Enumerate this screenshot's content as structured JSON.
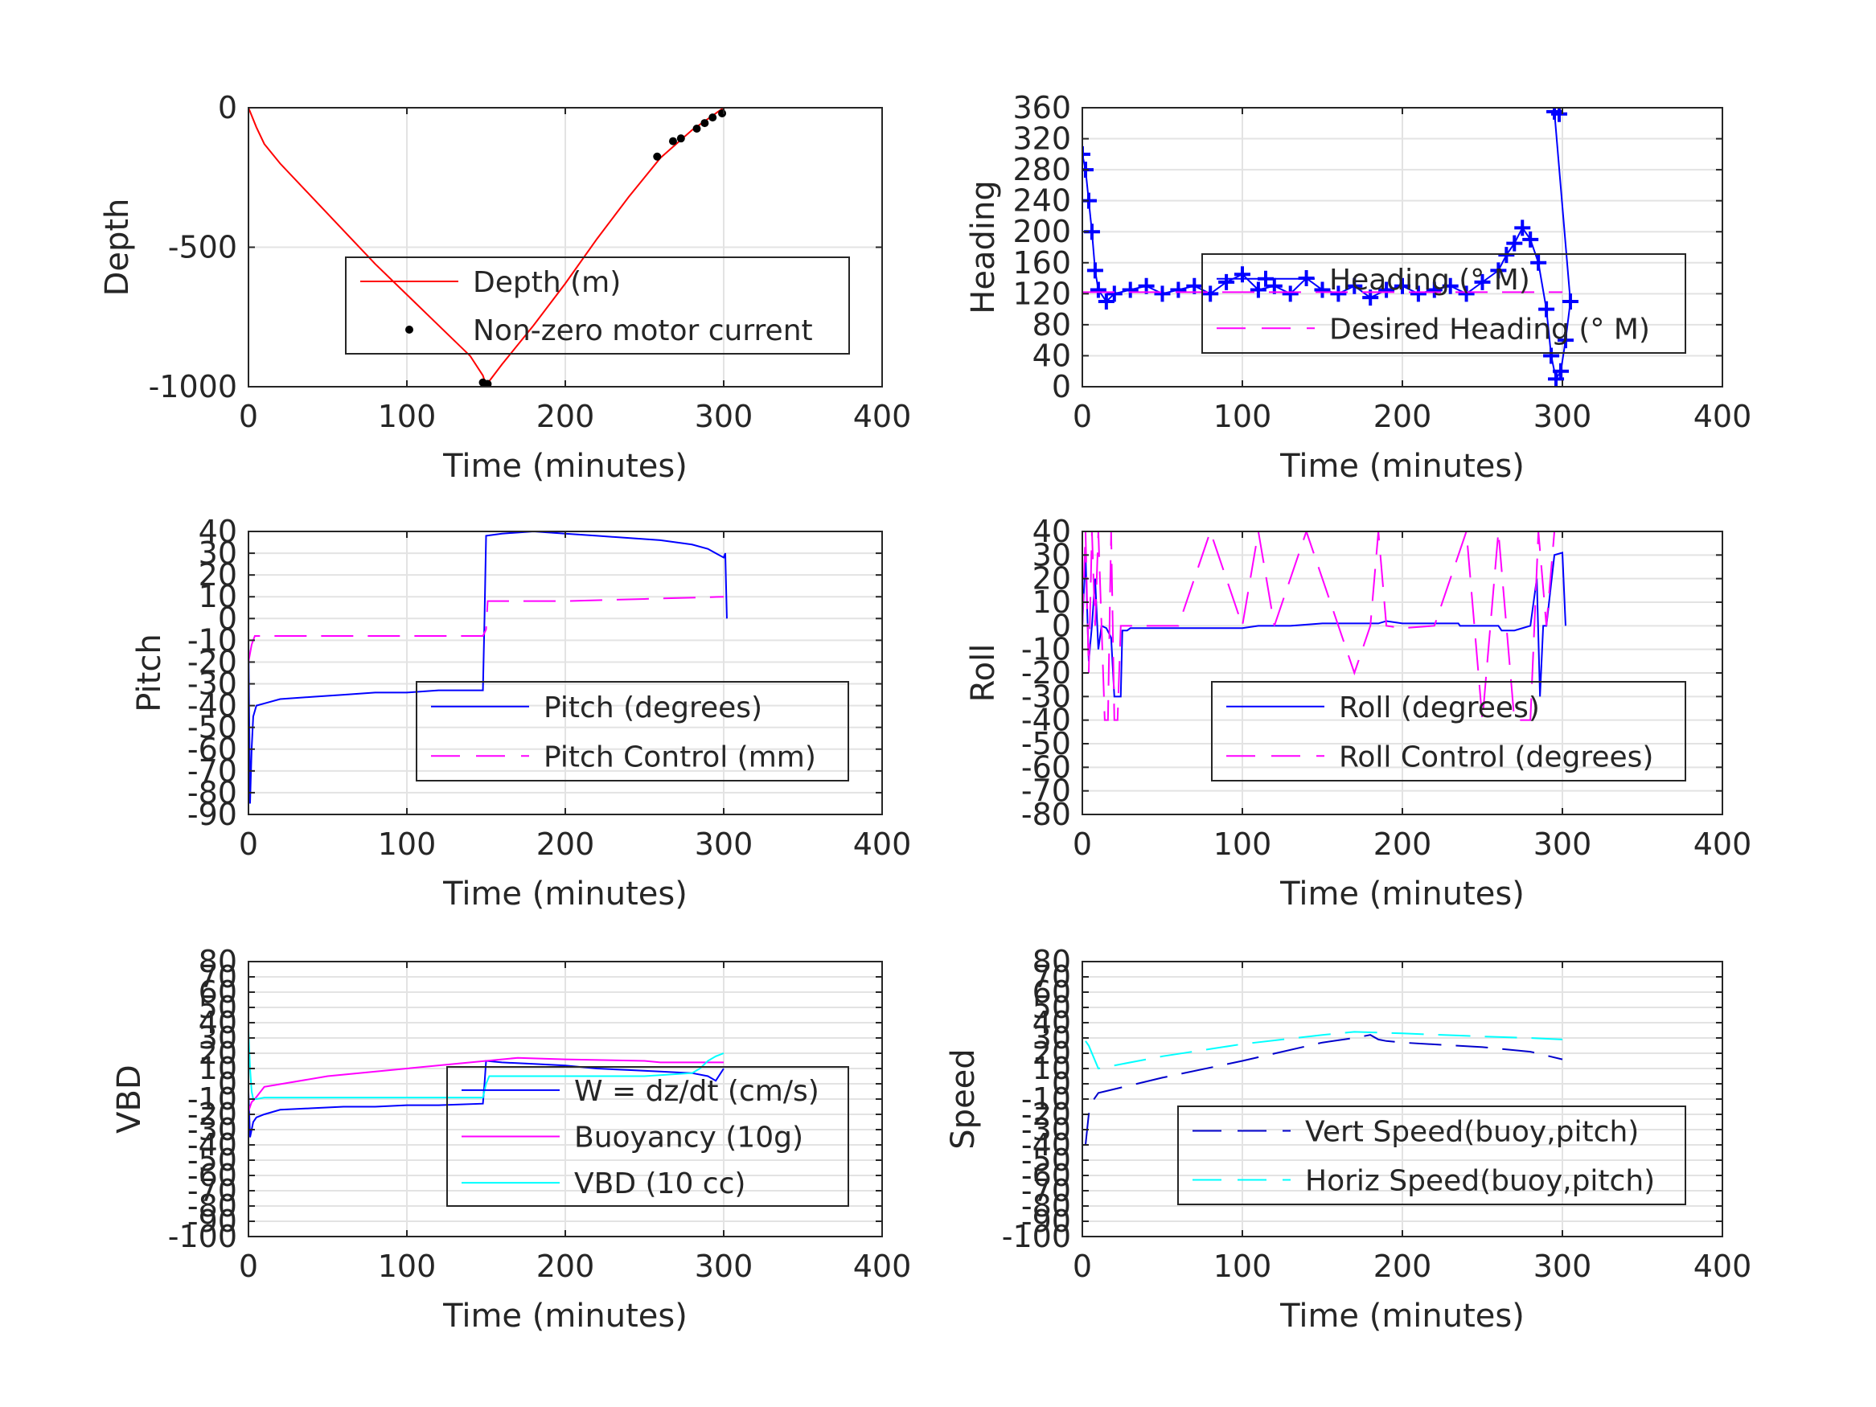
{
  "chart_data": [
    {
      "type": "line",
      "xlabel": "Time (minutes)",
      "ylabel": "Depth",
      "xlim": [
        0,
        400
      ],
      "ylim": [
        -1000,
        0
      ],
      "xticks": [
        0,
        100,
        200,
        300,
        400
      ],
      "yticks": [
        -1000,
        -500,
        0
      ],
      "ytick_labels": [
        "-1000",
        "-500",
        "0"
      ],
      "grid": true,
      "legend_position": "center-right",
      "series": [
        {
          "name": "Depth (m)",
          "color": "#ff0000",
          "style": "solid",
          "x": [
            0,
            5,
            10,
            20,
            40,
            60,
            80,
            100,
            120,
            140,
            148,
            150,
            160,
            180,
            200,
            220,
            240,
            250,
            260,
            270,
            280,
            290,
            300
          ],
          "y": [
            0,
            -70,
            -130,
            -200,
            -320,
            -440,
            -560,
            -670,
            -780,
            -890,
            -960,
            -995,
            -920,
            -780,
            -630,
            -470,
            -320,
            -250,
            -180,
            -130,
            -80,
            -40,
            0
          ]
        },
        {
          "name": "Non-zero motor current",
          "color": "#000000",
          "style": "dots",
          "x": [
            148,
            151,
            258,
            268,
            273,
            283,
            288,
            293,
            299
          ],
          "y": [
            -985,
            -990,
            -175,
            -120,
            -110,
            -75,
            -55,
            -35,
            -20
          ]
        }
      ]
    },
    {
      "type": "line",
      "xlabel": "Time (minutes)",
      "ylabel": "Heading",
      "xlim": [
        0,
        400
      ],
      "ylim": [
        0,
        360
      ],
      "xticks": [
        0,
        100,
        200,
        300,
        400
      ],
      "yticks": [
        0,
        40,
        80,
        120,
        160,
        200,
        240,
        280,
        320,
        360
      ],
      "ytick_labels": [
        "0",
        "40",
        "80",
        "120",
        "160",
        "200",
        "240",
        "280",
        "320",
        "360"
      ],
      "grid": true,
      "legend_position": "center-right",
      "series": [
        {
          "name": "Heading (° M)",
          "color": "#0000ff",
          "style": "plus",
          "x": [
            0,
            2,
            4,
            6,
            8,
            10,
            15,
            20,
            30,
            40,
            50,
            60,
            70,
            80,
            90,
            100,
            110,
            120,
            130,
            140,
            150,
            160,
            170,
            180,
            190,
            200,
            210,
            220,
            230,
            240,
            250,
            260,
            265,
            270,
            275,
            280,
            285,
            290,
            293,
            296,
            299,
            302,
            305,
            295,
            298
          ],
          "y": [
            300,
            280,
            240,
            200,
            150,
            125,
            110,
            120,
            125,
            130,
            120,
            125,
            130,
            120,
            135,
            145,
            125,
            130,
            120,
            140,
            125,
            120,
            130,
            115,
            125,
            130,
            120,
            125,
            130,
            120,
            135,
            150,
            170,
            185,
            205,
            190,
            160,
            100,
            40,
            10,
            20,
            60,
            110,
            355,
            352
          ]
        },
        {
          "name": "Desired Heading (° M)",
          "color": "#ff00ff",
          "style": "dashed",
          "x": [
            0,
            300
          ],
          "y": [
            122,
            122
          ]
        }
      ]
    },
    {
      "type": "line",
      "xlabel": "Time (minutes)",
      "ylabel": "Pitch",
      "xlim": [
        0,
        400
      ],
      "ylim": [
        -90,
        40
      ],
      "xticks": [
        0,
        100,
        200,
        300,
        400
      ],
      "yticks": [
        -90,
        -80,
        -70,
        -60,
        -50,
        -40,
        -30,
        -20,
        -10,
        0,
        10,
        20,
        30,
        40
      ],
      "ytick_labels": [
        "-90",
        "-80",
        "-70",
        "-60",
        "-50",
        "-40",
        "-30",
        "-20",
        "-10",
        "0",
        "10",
        "20",
        "30",
        "40"
      ],
      "grid": true,
      "legend_position": "center-right",
      "series": [
        {
          "name": "Pitch (degrees)",
          "color": "#0000ff",
          "style": "solid",
          "x": [
            0,
            1,
            2,
            3,
            5,
            10,
            20,
            40,
            60,
            80,
            100,
            120,
            140,
            148,
            149,
            150,
            160,
            180,
            200,
            220,
            240,
            260,
            280,
            290,
            295,
            300,
            301,
            302
          ],
          "y": [
            -10,
            -85,
            -60,
            -45,
            -40,
            -39,
            -37,
            -36,
            -35,
            -34,
            -34,
            -33,
            -33,
            -33,
            0,
            38,
            39,
            40,
            39,
            38,
            37,
            36,
            34,
            32,
            30,
            28,
            30,
            0
          ]
        },
        {
          "name": "Pitch Control (mm)",
          "color": "#ff00ff",
          "style": "dashed",
          "x": [
            0,
            2,
            4,
            10,
            50,
            100,
            148,
            150,
            151,
            200,
            250,
            300
          ],
          "y": [
            -20,
            -12,
            -8,
            -8,
            -8,
            -8,
            -8,
            -5,
            8,
            8,
            9,
            10
          ]
        }
      ]
    },
    {
      "type": "line",
      "xlabel": "Time (minutes)",
      "ylabel": "Roll",
      "xlim": [
        0,
        400
      ],
      "ylim": [
        -80,
        40
      ],
      "xticks": [
        0,
        100,
        200,
        300,
        400
      ],
      "yticks": [
        -80,
        -70,
        -60,
        -50,
        -40,
        -30,
        -20,
        -10,
        0,
        10,
        20,
        30,
        40
      ],
      "ytick_labels": [
        "-80",
        "-70",
        "-60",
        "-50",
        "-40",
        "-30",
        "-20",
        "-10",
        "0",
        "10",
        "20",
        "30",
        "40"
      ],
      "grid": true,
      "legend_position": "bottom-right",
      "series": [
        {
          "name": "Roll (degrees)",
          "color": "#0000ff",
          "style": "solid",
          "x": [
            0,
            2,
            4,
            6,
            8,
            10,
            12,
            15,
            18,
            20,
            22,
            24,
            25,
            26,
            28,
            30,
            50,
            80,
            100,
            110,
            112,
            114,
            130,
            150,
            170,
            185,
            190,
            200,
            220,
            235,
            236,
            240,
            260,
            262,
            270,
            280,
            284,
            286,
            288,
            290,
            295,
            300,
            302
          ],
          "y": [
            0,
            30,
            -15,
            0,
            20,
            -10,
            0,
            -1,
            -5,
            -30,
            -30,
            -30,
            -2,
            -2,
            -2,
            -1,
            -1,
            -1,
            -1,
            0,
            0,
            0,
            0,
            1,
            1,
            1,
            2,
            1,
            1,
            1,
            0,
            0,
            0,
            -2,
            -2,
            0,
            20,
            -30,
            0,
            0,
            30,
            31,
            0
          ]
        },
        {
          "name": "Roll Control (degrees)",
          "color": "#ff00ff",
          "style": "dashed",
          "x": [
            0,
            2,
            4,
            6,
            8,
            10,
            12,
            14,
            16,
            18,
            20,
            22,
            24,
            26,
            40,
            60,
            80,
            100,
            110,
            120,
            140,
            160,
            170,
            180,
            185,
            190,
            200,
            220,
            240,
            250,
            260,
            270,
            280,
            285,
            290,
            295,
            300
          ],
          "y": [
            0,
            40,
            -20,
            40,
            0,
            40,
            0,
            -40,
            -40,
            40,
            -40,
            -40,
            0,
            0,
            0,
            0,
            40,
            0,
            40,
            0,
            40,
            0,
            -20,
            0,
            40,
            0,
            -1,
            0,
            40,
            -40,
            40,
            -40,
            -40,
            40,
            0,
            40,
            40
          ]
        }
      ]
    },
    {
      "type": "line",
      "xlabel": "Time (minutes)",
      "ylabel": "VBD",
      "xlim": [
        0,
        400
      ],
      "ylim": [
        -100,
        80
      ],
      "xticks": [
        0,
        100,
        200,
        300,
        400
      ],
      "yticks": [
        -100,
        -90,
        -80,
        -70,
        -60,
        -50,
        -40,
        -30,
        -20,
        -10,
        0,
        10,
        20,
        30,
        40,
        50,
        60,
        70,
        80
      ],
      "ytick_labels": [
        "-100",
        "-90",
        "-80",
        "-70",
        "-60",
        "-50",
        "-40",
        "-30",
        "-20",
        "-10",
        "0",
        "10",
        "20",
        "30",
        "40",
        "50",
        "60",
        "70",
        "80"
      ],
      "grid": true,
      "legend_position": "center-right",
      "series": [
        {
          "name": "W = dz/dt (cm/s)",
          "color": "#0000ff",
          "style": "solid",
          "x": [
            0,
            1,
            2,
            3,
            5,
            10,
            20,
            40,
            60,
            80,
            100,
            120,
            148,
            149,
            150,
            160,
            180,
            200,
            220,
            240,
            260,
            280,
            290,
            295,
            300
          ],
          "y": [
            -5,
            -35,
            -30,
            -25,
            -22,
            -20,
            -17,
            -16,
            -15,
            -15,
            -14,
            -14,
            -13,
            0,
            15,
            14,
            13,
            12,
            10,
            9,
            8,
            7,
            5,
            2,
            10
          ]
        },
        {
          "name": "Buoyancy (10g)",
          "color": "#ff00ff",
          "style": "solid",
          "x": [
            0,
            2,
            4,
            10,
            50,
            100,
            150,
            170,
            200,
            250,
            260,
            300
          ],
          "y": [
            -18,
            -12,
            -10,
            -2,
            5,
            10,
            15,
            17,
            16,
            15,
            14,
            14
          ]
        },
        {
          "name": "VBD (10 cc)",
          "color": "#00ffff",
          "style": "solid",
          "x": [
            0,
            1,
            2,
            3,
            5,
            10,
            100,
            148,
            150,
            152,
            250,
            280,
            285,
            290,
            295,
            300
          ],
          "y": [
            35,
            10,
            -5,
            -10,
            -10,
            -9,
            -9,
            -9,
            0,
            5,
            5,
            7,
            10,
            15,
            18,
            20
          ]
        }
      ]
    },
    {
      "type": "line",
      "xlabel": "Time (minutes)",
      "ylabel": "Speed",
      "xlim": [
        0,
        400
      ],
      "ylim": [
        -100,
        80
      ],
      "xticks": [
        0,
        100,
        200,
        300,
        400
      ],
      "yticks": [
        -100,
        -90,
        -80,
        -70,
        -60,
        -50,
        -40,
        -30,
        -20,
        -10,
        0,
        10,
        20,
        30,
        40,
        50,
        60,
        70,
        80
      ],
      "ytick_labels": [
        "-100",
        "-90",
        "-80",
        "-70",
        "-60",
        "-50",
        "-40",
        "-30",
        "-20",
        "-10",
        "0",
        "10",
        "20",
        "30",
        "40",
        "50",
        "60",
        "70",
        "80"
      ],
      "grid": true,
      "legend_position": "bottom-right",
      "series": [
        {
          "name": "Vert Speed(buoy,pitch)",
          "color": "#0000cc",
          "style": "dashed",
          "x": [
            2,
            3,
            4,
            6,
            10,
            50,
            100,
            150,
            170,
            180,
            185,
            190,
            200,
            250,
            280,
            300
          ],
          "y": [
            -40,
            -30,
            -20,
            -12,
            -6,
            4,
            15,
            27,
            30,
            32,
            29,
            28,
            27,
            24,
            21,
            16
          ]
        },
        {
          "name": "Horiz Speed(buoy,pitch)",
          "color": "#00ffff",
          "style": "dashed",
          "x": [
            2,
            4,
            6,
            8,
            10,
            50,
            100,
            150,
            170,
            200,
            250,
            280,
            300
          ],
          "y": [
            28,
            25,
            20,
            15,
            10,
            18,
            26,
            32,
            34,
            33,
            31,
            30,
            29
          ]
        }
      ]
    }
  ]
}
